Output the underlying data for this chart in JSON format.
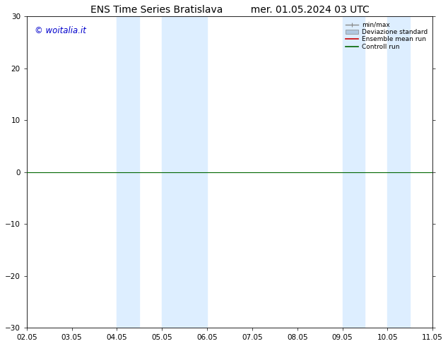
{
  "title_left": "ENS Time Series Bratislava",
  "title_right": "mer. 01.05.2024 03 UTC",
  "watermark": "© woitalia.it",
  "watermark_color": "#0000cc",
  "ylim": [
    -30,
    30
  ],
  "yticks": [
    -30,
    -20,
    -10,
    0,
    10,
    20,
    30
  ],
  "xtick_labels": [
    "02.05",
    "03.05",
    "04.05",
    "05.05",
    "06.05",
    "07.05",
    "08.05",
    "09.05",
    "10.05",
    "11.05"
  ],
  "xmin": 0.0,
  "xmax": 9.0,
  "shade_regions": [
    [
      2.0,
      2.5
    ],
    [
      3.0,
      4.0
    ],
    [
      7.0,
      7.5
    ],
    [
      8.0,
      8.5
    ]
  ],
  "shade_color": "#ddeeff",
  "horizontal_line_y": 0,
  "horizontal_line_color": "#006600",
  "legend_labels": [
    "min/max",
    "Deviazione standard",
    "Ensemble mean run",
    "Controll run"
  ],
  "legend_line_colors": [
    "#888888",
    "#b0c8e0",
    "#cc0000",
    "#006600"
  ],
  "background_color": "#ffffff",
  "title_fontsize": 10,
  "tick_fontsize": 7.5,
  "watermark_fontsize": 8.5
}
